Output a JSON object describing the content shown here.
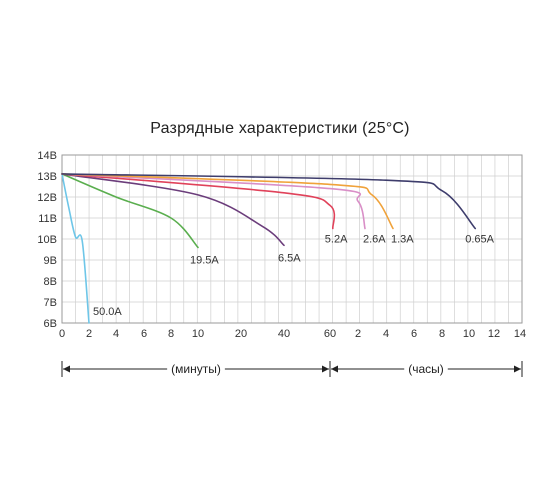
{
  "chart_data": {
    "type": "line",
    "title": "Разрядные характеристики (25°C)",
    "xlabel": "",
    "ylabel": "",
    "grid": true,
    "y_ticks": [
      "6В",
      "7В",
      "8В",
      "9В",
      "10В",
      "11В",
      "12В",
      "13В",
      "14В"
    ],
    "y_range": [
      6,
      14
    ],
    "x_segments": [
      {
        "unit_label": "(минуты)",
        "ticks": [
          "0",
          "2",
          "4",
          "6",
          "8",
          "10",
          "20",
          "40",
          "60"
        ]
      },
      {
        "unit_label": "(часы)",
        "ticks": [
          "2",
          "4",
          "6",
          "8",
          "10",
          "12",
          "14"
        ]
      }
    ],
    "series": [
      {
        "name": "50.0A",
        "color": "#6ec6e8",
        "points": [
          {
            "t": "0 мин",
            "v": 13.1
          },
          {
            "t": "0.5 мин",
            "v": 11.5
          },
          {
            "t": "1 мин",
            "v": 10.1
          },
          {
            "t": "1.5 мин",
            "v": 9.9
          },
          {
            "t": "2 мин",
            "v": 6.0
          }
        ]
      },
      {
        "name": "19.5A",
        "color": "#5aae4e",
        "points": [
          {
            "t": "0 мин",
            "v": 13.1
          },
          {
            "t": "4 мин",
            "v": 12.0
          },
          {
            "t": "8 мин",
            "v": 11.0
          },
          {
            "t": "10 мин",
            "v": 9.6
          }
        ]
      },
      {
        "name": "6.5A",
        "color": "#6b3d7b",
        "points": [
          {
            "t": "0 мин",
            "v": 13.1
          },
          {
            "t": "10 мин",
            "v": 12.1
          },
          {
            "t": "30 мин",
            "v": 10.6
          },
          {
            "t": "40 мин",
            "v": 9.7
          }
        ]
      },
      {
        "name": "5.2A",
        "color": "#e0425a",
        "points": [
          {
            "t": "0 мин",
            "v": 13.1
          },
          {
            "t": "40 мин",
            "v": 12.2
          },
          {
            "t": "1 ч",
            "v": 11.6
          },
          {
            "t": "1.1 ч",
            "v": 10.5
          }
        ]
      },
      {
        "name": "2.6A",
        "color": "#d98fc7",
        "points": [
          {
            "t": "0 мин",
            "v": 13.1
          },
          {
            "t": "1 ч",
            "v": 12.4
          },
          {
            "t": "2 ч",
            "v": 11.8
          },
          {
            "t": "2.5 ч",
            "v": 10.5
          }
        ]
      },
      {
        "name": "1.3A",
        "color": "#f0a23a",
        "points": [
          {
            "t": "0 мин",
            "v": 13.1
          },
          {
            "t": "1 ч",
            "v": 12.6
          },
          {
            "t": "3 ч",
            "v": 12.1
          },
          {
            "t": "4.5 ч",
            "v": 10.5
          }
        ]
      },
      {
        "name": "0.65A",
        "color": "#3e3d6c",
        "points": [
          {
            "t": "0 мин",
            "v": 13.1
          },
          {
            "t": "4 ч",
            "v": 12.8
          },
          {
            "t": "8 ч",
            "v": 12.3
          },
          {
            "t": "10.5 ч",
            "v": 10.5
          }
        ]
      }
    ],
    "legend": "inline labels at curve ends"
  }
}
